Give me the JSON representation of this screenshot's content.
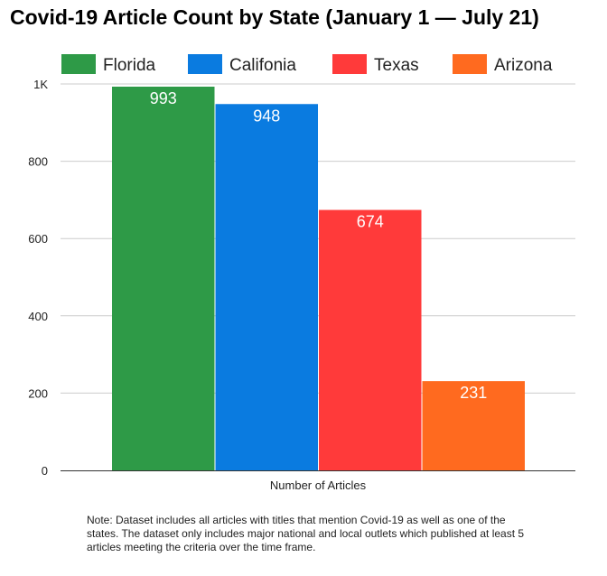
{
  "chart_data": {
    "type": "bar",
    "title": "Covid-19 Article Count by State (January 1 — July 21)",
    "xlabel": "Number of Articles",
    "ylabel": "",
    "categories": [
      "Number of Articles"
    ],
    "series": [
      {
        "name": "Florida",
        "values": [
          993
        ],
        "color": "#2e9a47"
      },
      {
        "name": "Califonia",
        "values": [
          948
        ],
        "color": "#0a7be0"
      },
      {
        "name": "Texas",
        "values": [
          674
        ],
        "color": "#ff3a3a"
      },
      {
        "name": "Arizona",
        "values": [
          231
        ],
        "color": "#ff6a1f"
      }
    ],
    "ylim": [
      0,
      1000
    ],
    "yticks": [
      {
        "value": 0,
        "label": "0"
      },
      {
        "value": 200,
        "label": "200"
      },
      {
        "value": 400,
        "label": "400"
      },
      {
        "value": 600,
        "label": "600"
      },
      {
        "value": 800,
        "label": "800"
      },
      {
        "value": 1000,
        "label": "1K"
      }
    ],
    "data_labels": [
      "993",
      "948",
      "674",
      "231"
    ],
    "grid": true,
    "legend": "top"
  },
  "note": "Note: Dataset includes all articles with titles that mention Covid-19 as well as one of the states. The dataset only includes major national and local outlets which published at least 5 articles meeting the criteria over the time frame."
}
